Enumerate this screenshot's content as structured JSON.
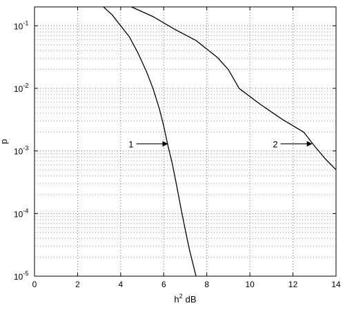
{
  "chart_data": {
    "type": "line",
    "title": "",
    "xlabel_base": "h",
    "xlabel_sup": "2",
    "xlabel_unit": "dB",
    "ylabel": "p",
    "xlim": [
      0,
      14
    ],
    "ylim": [
      1e-05,
      0.2
    ],
    "yscale": "log",
    "grid": true,
    "x_ticks": [
      "0",
      "2",
      "4",
      "6",
      "8",
      "10",
      "12",
      "14"
    ],
    "y_ticks": [
      {
        "value": 0.1,
        "base": "10",
        "exp": "-1"
      },
      {
        "value": 0.01,
        "base": "10",
        "exp": "-2"
      },
      {
        "value": 0.001,
        "base": "10",
        "exp": "-3"
      },
      {
        "value": 0.0001,
        "base": "10",
        "exp": "-4"
      },
      {
        "value": 1e-05,
        "base": "10",
        "exp": "-5"
      }
    ],
    "series": [
      {
        "name": "1",
        "x": [
          3.2,
          3.6,
          4.0,
          4.4,
          4.8,
          5.2,
          5.5,
          5.8,
          6.0,
          6.2,
          6.4,
          6.6,
          6.8,
          7.0,
          7.2,
          7.5
        ],
        "y": [
          0.2,
          0.15,
          0.1,
          0.067,
          0.037,
          0.0185,
          0.01,
          0.0047,
          0.0025,
          0.0012,
          0.00062,
          0.00028,
          0.00012,
          5.5e-05,
          2.6e-05,
          1e-05
        ]
      },
      {
        "name": "2",
        "x": [
          4.5,
          5.5,
          6.5,
          7.5,
          8.5,
          9.0,
          9.5,
          10.5,
          11.5,
          12.5,
          13.0,
          13.5,
          14.0
        ],
        "y": [
          0.2,
          0.14,
          0.088,
          0.058,
          0.031,
          0.02,
          0.01,
          0.0055,
          0.0032,
          0.002,
          0.0012,
          0.00075,
          0.0005
        ]
      }
    ],
    "annotations": [
      {
        "text": "1",
        "at_x": 6.2,
        "at_y": 0.0013
      },
      {
        "text": "2",
        "at_x": 12.9,
        "at_y": 0.0013
      }
    ]
  }
}
